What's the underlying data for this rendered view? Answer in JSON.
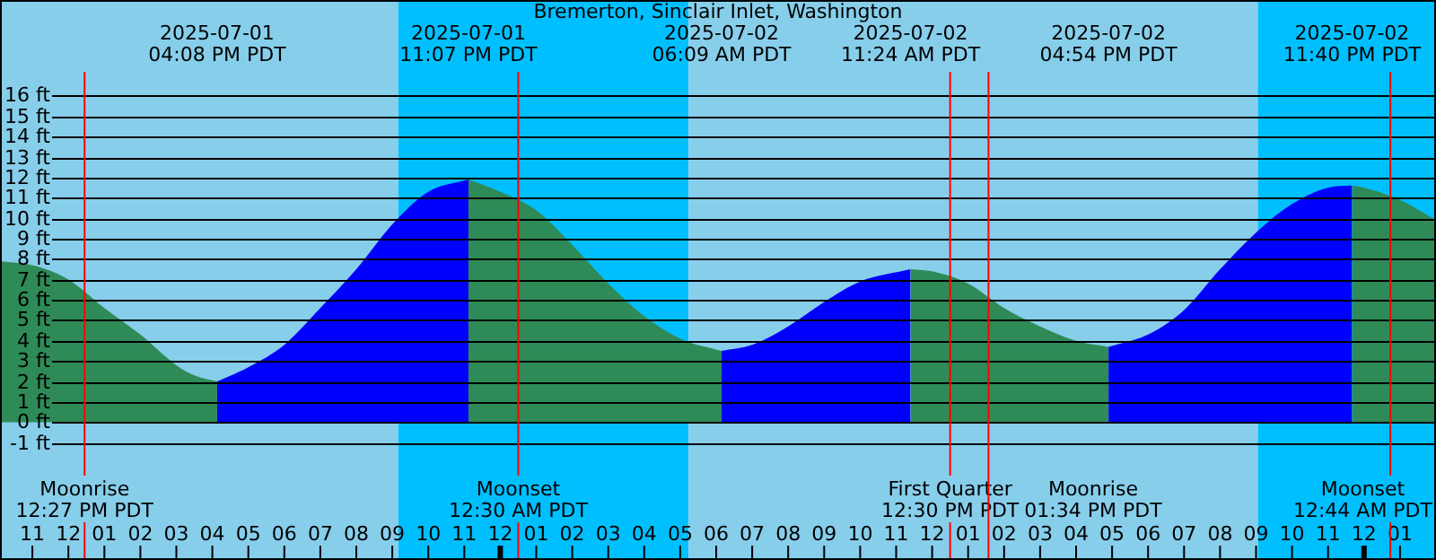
{
  "chart_data": {
    "type": "area",
    "title": "Bremerton, Sinclair Inlet, Washington",
    "xlim": [
      "2025-07-01T10:06",
      "2025-07-03T02:00"
    ],
    "ylim": [
      -6.75,
      20.7
    ],
    "xticks": [
      {
        "value": "2025-07-01T11:00",
        "label": "11"
      },
      {
        "value": "2025-07-01T12:00",
        "label": "12"
      },
      {
        "value": "2025-07-01T13:00",
        "label": "01"
      },
      {
        "value": "2025-07-01T14:00",
        "label": "02"
      },
      {
        "value": "2025-07-01T15:00",
        "label": "03"
      },
      {
        "value": "2025-07-01T16:00",
        "label": "04"
      },
      {
        "value": "2025-07-01T17:00",
        "label": "05"
      },
      {
        "value": "2025-07-01T18:00",
        "label": "06"
      },
      {
        "value": "2025-07-01T19:00",
        "label": "07"
      },
      {
        "value": "2025-07-01T20:00",
        "label": "08"
      },
      {
        "value": "2025-07-01T21:00",
        "label": "09"
      },
      {
        "value": "2025-07-01T22:00",
        "label": "10"
      },
      {
        "value": "2025-07-01T23:00",
        "label": "11"
      },
      {
        "value": "2025-07-02T00:00",
        "label": "12"
      },
      {
        "value": "2025-07-02T01:00",
        "label": "01"
      },
      {
        "value": "2025-07-02T02:00",
        "label": "02"
      },
      {
        "value": "2025-07-02T03:00",
        "label": "03"
      },
      {
        "value": "2025-07-02T04:00",
        "label": "04"
      },
      {
        "value": "2025-07-02T05:00",
        "label": "05"
      },
      {
        "value": "2025-07-02T06:00",
        "label": "06"
      },
      {
        "value": "2025-07-02T07:00",
        "label": "07"
      },
      {
        "value": "2025-07-02T08:00",
        "label": "08"
      },
      {
        "value": "2025-07-02T09:00",
        "label": "09"
      },
      {
        "value": "2025-07-02T10:00",
        "label": "10"
      },
      {
        "value": "2025-07-02T11:00",
        "label": "11"
      },
      {
        "value": "2025-07-02T12:00",
        "label": "12"
      },
      {
        "value": "2025-07-02T13:00",
        "label": "01"
      },
      {
        "value": "2025-07-02T14:00",
        "label": "02"
      },
      {
        "value": "2025-07-02T15:00",
        "label": "03"
      },
      {
        "value": "2025-07-02T16:00",
        "label": "04"
      },
      {
        "value": "2025-07-02T17:00",
        "label": "05"
      },
      {
        "value": "2025-07-02T18:00",
        "label": "06"
      },
      {
        "value": "2025-07-02T19:00",
        "label": "07"
      },
      {
        "value": "2025-07-02T20:00",
        "label": "08"
      },
      {
        "value": "2025-07-02T21:00",
        "label": "09"
      },
      {
        "value": "2025-07-02T22:00",
        "label": "10"
      },
      {
        "value": "2025-07-02T23:00",
        "label": "11"
      },
      {
        "value": "2025-07-03T00:00",
        "label": "12"
      },
      {
        "value": "2025-07-03T01:00",
        "label": "01"
      }
    ],
    "yticks": [
      {
        "value": 16,
        "label": "16 ft"
      },
      {
        "value": 15,
        "label": "15 ft"
      },
      {
        "value": 14,
        "label": "14 ft"
      },
      {
        "value": 13,
        "label": "13 ft"
      },
      {
        "value": 12,
        "label": "12 ft"
      },
      {
        "value": 11,
        "label": "11 ft"
      },
      {
        "value": 10,
        "label": "10 ft"
      },
      {
        "value": 9,
        "label": "9 ft"
      },
      {
        "value": 8,
        "label": "8 ft"
      },
      {
        "value": 7,
        "label": "7 ft"
      },
      {
        "value": 6,
        "label": "6 ft"
      },
      {
        "value": 5,
        "label": "5 ft"
      },
      {
        "value": 4,
        "label": "4 ft"
      },
      {
        "value": 3,
        "label": "3 ft"
      },
      {
        "value": 2,
        "label": "2 ft"
      },
      {
        "value": 1,
        "label": "1 ft"
      },
      {
        "value": 0,
        "label": "0 ft"
      },
      {
        "value": -1,
        "label": "-1 ft"
      }
    ],
    "grid": "y",
    "legend": false,
    "series": [
      {
        "color": "#2e8b57",
        "x": [
          "2025-07-01T10:06",
          "2025-07-01T11:00",
          "2025-07-01T12:00",
          "2025-07-01T13:00",
          "2025-07-01T14:00",
          "2025-07-01T15:00",
          "2025-07-01T15:30",
          "2025-07-01T16:08"
        ],
        "values": [
          7.9,
          7.7,
          7.0,
          5.6,
          4.3,
          2.8,
          2.3,
          2.0
        ]
      },
      {
        "color": "#0000ff",
        "x": [
          "2025-07-01T16:08",
          "2025-07-01T17:00",
          "2025-07-01T18:00",
          "2025-07-01T19:00",
          "2025-07-01T20:00",
          "2025-07-01T21:00",
          "2025-07-01T22:00",
          "2025-07-01T23:07"
        ],
        "values": [
          2.0,
          2.7,
          3.8,
          5.6,
          7.5,
          9.7,
          11.3,
          11.9
        ]
      },
      {
        "color": "#2e8b57",
        "x": [
          "2025-07-01T23:07",
          "2025-07-02T00:00",
          "2025-07-02T01:00",
          "2025-07-02T02:00",
          "2025-07-02T03:00",
          "2025-07-02T04:00",
          "2025-07-02T05:00",
          "2025-07-02T06:09"
        ],
        "values": [
          11.9,
          11.3,
          10.4,
          8.7,
          6.8,
          5.2,
          4.1,
          3.5
        ]
      },
      {
        "color": "#0000ff",
        "x": [
          "2025-07-02T06:09",
          "2025-07-02T07:00",
          "2025-07-02T08:00",
          "2025-07-02T09:00",
          "2025-07-02T10:00",
          "2025-07-02T11:24"
        ],
        "values": [
          3.5,
          3.8,
          4.7,
          5.9,
          6.9,
          7.5
        ]
      },
      {
        "color": "#2e8b57",
        "x": [
          "2025-07-02T11:24",
          "2025-07-02T12:00",
          "2025-07-02T13:00",
          "2025-07-02T14:00",
          "2025-07-02T15:00",
          "2025-07-02T16:00",
          "2025-07-02T16:54"
        ],
        "values": [
          7.5,
          7.4,
          6.8,
          5.6,
          4.7,
          4.0,
          3.7
        ]
      },
      {
        "color": "#0000ff",
        "x": [
          "2025-07-02T16:54",
          "2025-07-02T18:00",
          "2025-07-02T19:00",
          "2025-07-02T20:00",
          "2025-07-02T21:00",
          "2025-07-02T22:00",
          "2025-07-02T23:00",
          "2025-07-02T23:40"
        ],
        "values": [
          3.7,
          4.3,
          5.5,
          7.5,
          9.3,
          10.7,
          11.5,
          11.6
        ]
      },
      {
        "color": "#2e8b57",
        "x": [
          "2025-07-02T23:40",
          "2025-07-03T00:00",
          "2025-07-03T01:00",
          "2025-07-03T02:00"
        ],
        "values": [
          11.6,
          11.5,
          10.9,
          9.9
        ]
      }
    ],
    "annotations": [
      "2025-07-01\n04:08 PM PDT",
      "2025-07-01\n11:07 PM PDT",
      "2025-07-02\n06:09 AM PDT",
      "2025-07-02\n11:24 AM PDT",
      "2025-07-02\n04:54 PM PDT",
      "2025-07-02\n11:40 PM PDT"
    ],
    "bands": [
      {
        "axis": "x",
        "from": "2025-07-01T10:06",
        "to": "2025-07-01T21:10",
        "color": "#87ceeb"
      },
      {
        "axis": "x",
        "from": "2025-07-01T21:10",
        "to": "2025-07-02T05:14",
        "color": "#00bfff"
      },
      {
        "axis": "x",
        "from": "2025-07-02T05:14",
        "to": "2025-07-02T21:03",
        "color": "#87ceeb"
      },
      {
        "axis": "x",
        "from": "2025-07-02T21:03",
        "to": "2025-07-03T02:00",
        "color": "#00bfff"
      }
    ],
    "ref_lines": [
      {
        "axis": "x",
        "value": "2025-07-01T12:27",
        "label": "Moonrise\n12:27 PM PDT",
        "color": "#ff0000"
      },
      {
        "axis": "x",
        "value": "2025-07-02T00:30",
        "label": "Moonset\n12:30 AM PDT",
        "color": "#ff0000"
      },
      {
        "axis": "x",
        "value": "2025-07-02T12:30",
        "label": "First Quarter\n12:30 PM PDT",
        "color": "#ff0000"
      },
      {
        "axis": "x",
        "value": "2025-07-02T13:34",
        "label": "Moonrise\n01:34 PM PDT",
        "color": "#ff0000"
      },
      {
        "axis": "x",
        "value": "2025-07-03T00:44",
        "label": "Moonset\n12:44 AM PDT",
        "color": "#ff0000"
      }
    ]
  }
}
